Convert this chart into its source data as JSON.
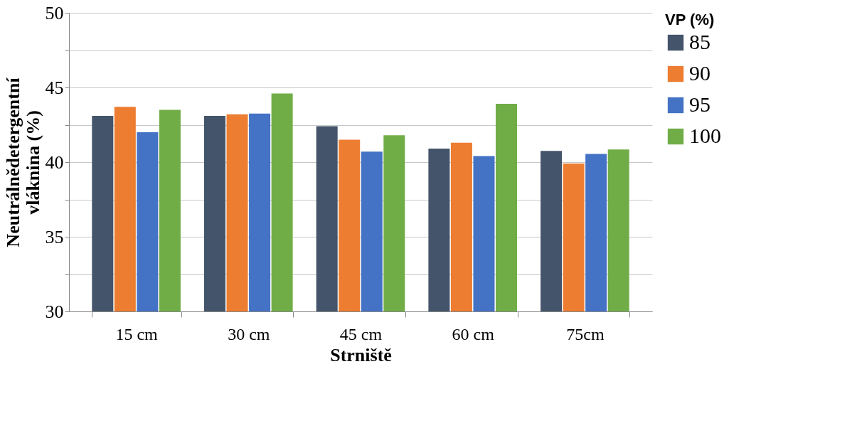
{
  "chart_data": {
    "type": "bar",
    "xlabel": "Strniště",
    "ylabel": "Neutrálnědetergentní vláknina (%)",
    "legend_title": "VP (%)",
    "categories": [
      "15 cm",
      "30 cm",
      "45 cm",
      "60 cm",
      "75cm"
    ],
    "series": [
      {
        "name": "85",
        "color": "#44546a",
        "values": [
          43.1,
          43.1,
          42.4,
          40.9,
          40.75
        ]
      },
      {
        "name": "90",
        "color": "#ed7d31",
        "values": [
          43.7,
          43.2,
          41.5,
          41.3,
          39.9
        ]
      },
      {
        "name": "95",
        "color": "#4472c4",
        "values": [
          42.0,
          43.25,
          40.7,
          40.4,
          40.55
        ]
      },
      {
        "name": "100",
        "color": "#70ad47",
        "values": [
          43.5,
          44.6,
          41.8,
          43.9,
          40.85
        ]
      }
    ],
    "ylim": [
      30,
      50
    ],
    "yticks": [
      30,
      {
        "value": 32.5,
        "label": null
      },
      35,
      {
        "value": 37.5,
        "label": null
      },
      40,
      {
        "value": 42.5,
        "label": null
      },
      45,
      {
        "value": 47.5,
        "label": null
      },
      50
    ],
    "grid": "y",
    "legend": "right"
  }
}
